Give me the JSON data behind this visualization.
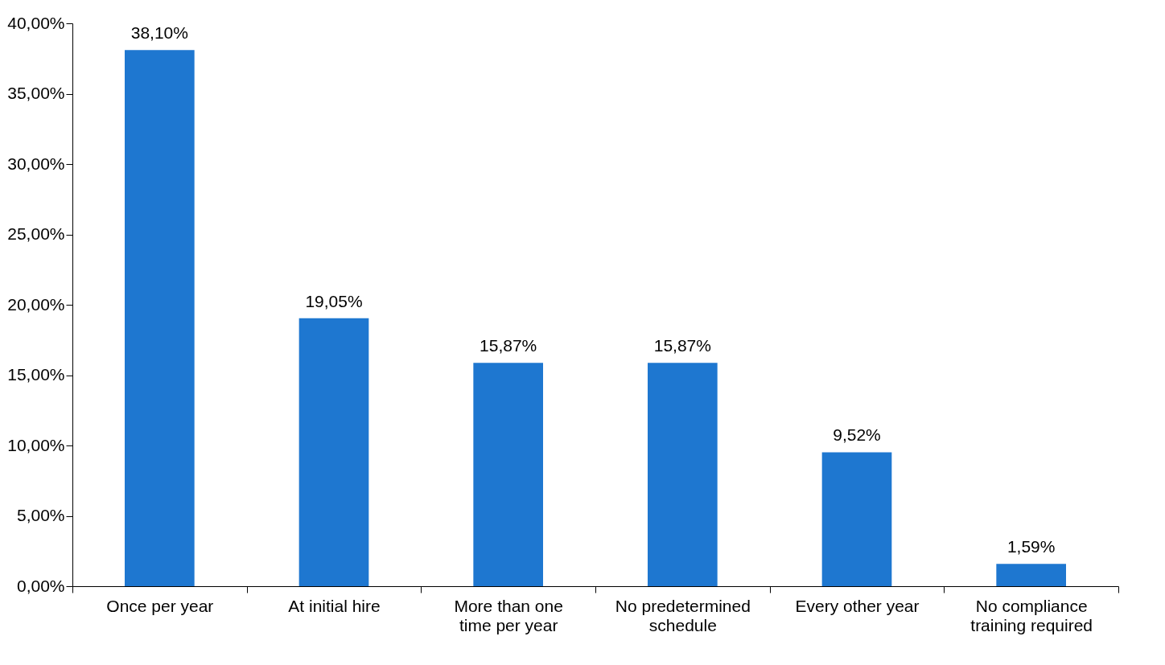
{
  "chart_data": {
    "type": "bar",
    "categories": [
      "Once per year",
      "At initial hire",
      "More than one time per year",
      "No predetermined schedule",
      "Every other year",
      "No compliance training required"
    ],
    "values": [
      38.1,
      19.05,
      15.87,
      15.87,
      9.52,
      1.59
    ],
    "value_labels": [
      "38,10%",
      "19,05%",
      "15,87%",
      "15,87%",
      "9,52%",
      "1,59%"
    ],
    "color": "#1e77d0",
    "ylim": [
      0,
      40
    ],
    "yticks": [
      {
        "value": 0,
        "label": "0,00%"
      },
      {
        "value": 5,
        "label": "5,00%"
      },
      {
        "value": 10,
        "label": "10,00%"
      },
      {
        "value": 15,
        "label": "15,00%"
      },
      {
        "value": 20,
        "label": "20,00%"
      },
      {
        "value": 25,
        "label": "25,00%"
      },
      {
        "value": 30,
        "label": "30,00%"
      },
      {
        "value": 35,
        "label": "35,00%"
      },
      {
        "value": 40,
        "label": "40,00%"
      }
    ],
    "grid": false
  }
}
